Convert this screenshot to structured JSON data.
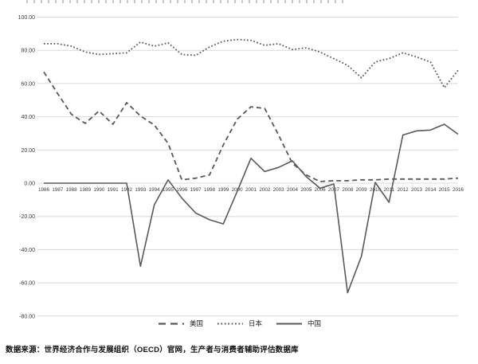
{
  "page": {
    "source_note": "数据来源：世界经济合作与发展组织（OECD）官网，生产者与消费者辅助评估数据库"
  },
  "chart_data": {
    "type": "line",
    "x": [
      1986,
      1987,
      1988,
      1989,
      1990,
      1991,
      1992,
      1993,
      1994,
      1995,
      1996,
      1997,
      1998,
      1999,
      2000,
      2001,
      2002,
      2003,
      2004,
      2005,
      2006,
      2007,
      2008,
      2009,
      2010,
      2011,
      2012,
      2013,
      2014,
      2015,
      2016
    ],
    "series": [
      {
        "name": "美国",
        "style": "dashed",
        "values": [
          67,
          54,
          41.5,
          36,
          43.5,
          35.5,
          48.5,
          40.5,
          35,
          24,
          2,
          3,
          5,
          23,
          38.5,
          46,
          45,
          29,
          12,
          5,
          1,
          1.5,
          1.5,
          2,
          2,
          2.5,
          2.5,
          2.5,
          2.5,
          2.5,
          3
        ]
      },
      {
        "name": "日本",
        "style": "dotted",
        "values": [
          84,
          84,
          82.5,
          79,
          77.5,
          78,
          78.5,
          85,
          82.5,
          84.5,
          77.5,
          77,
          82,
          85.5,
          86.5,
          86,
          83,
          84,
          80.5,
          81.5,
          79,
          75,
          71,
          63.5,
          73,
          75,
          78.5,
          76,
          73,
          57.5,
          68
        ]
      },
      {
        "name": "中国",
        "style": "solid",
        "values": [
          0,
          0,
          0,
          0,
          0,
          0,
          0,
          -50,
          -13,
          2,
          -9,
          -18,
          -22,
          -24.5,
          -5,
          15,
          7,
          9.5,
          13.5,
          4,
          -3,
          -0.5,
          -66,
          -44,
          0.5,
          -11.5,
          29,
          31.5,
          32,
          35.5,
          29.5
        ]
      }
    ],
    "title": "",
    "xlabel": "",
    "ylabel": "",
    "ylim": [
      -80,
      100
    ],
    "ytick_step": 20,
    "ytick_decimals": 2,
    "grid": "horizontal",
    "legend_position": "bottom-center",
    "line_color": "#595959",
    "grid_color": "#d9d9d9"
  }
}
